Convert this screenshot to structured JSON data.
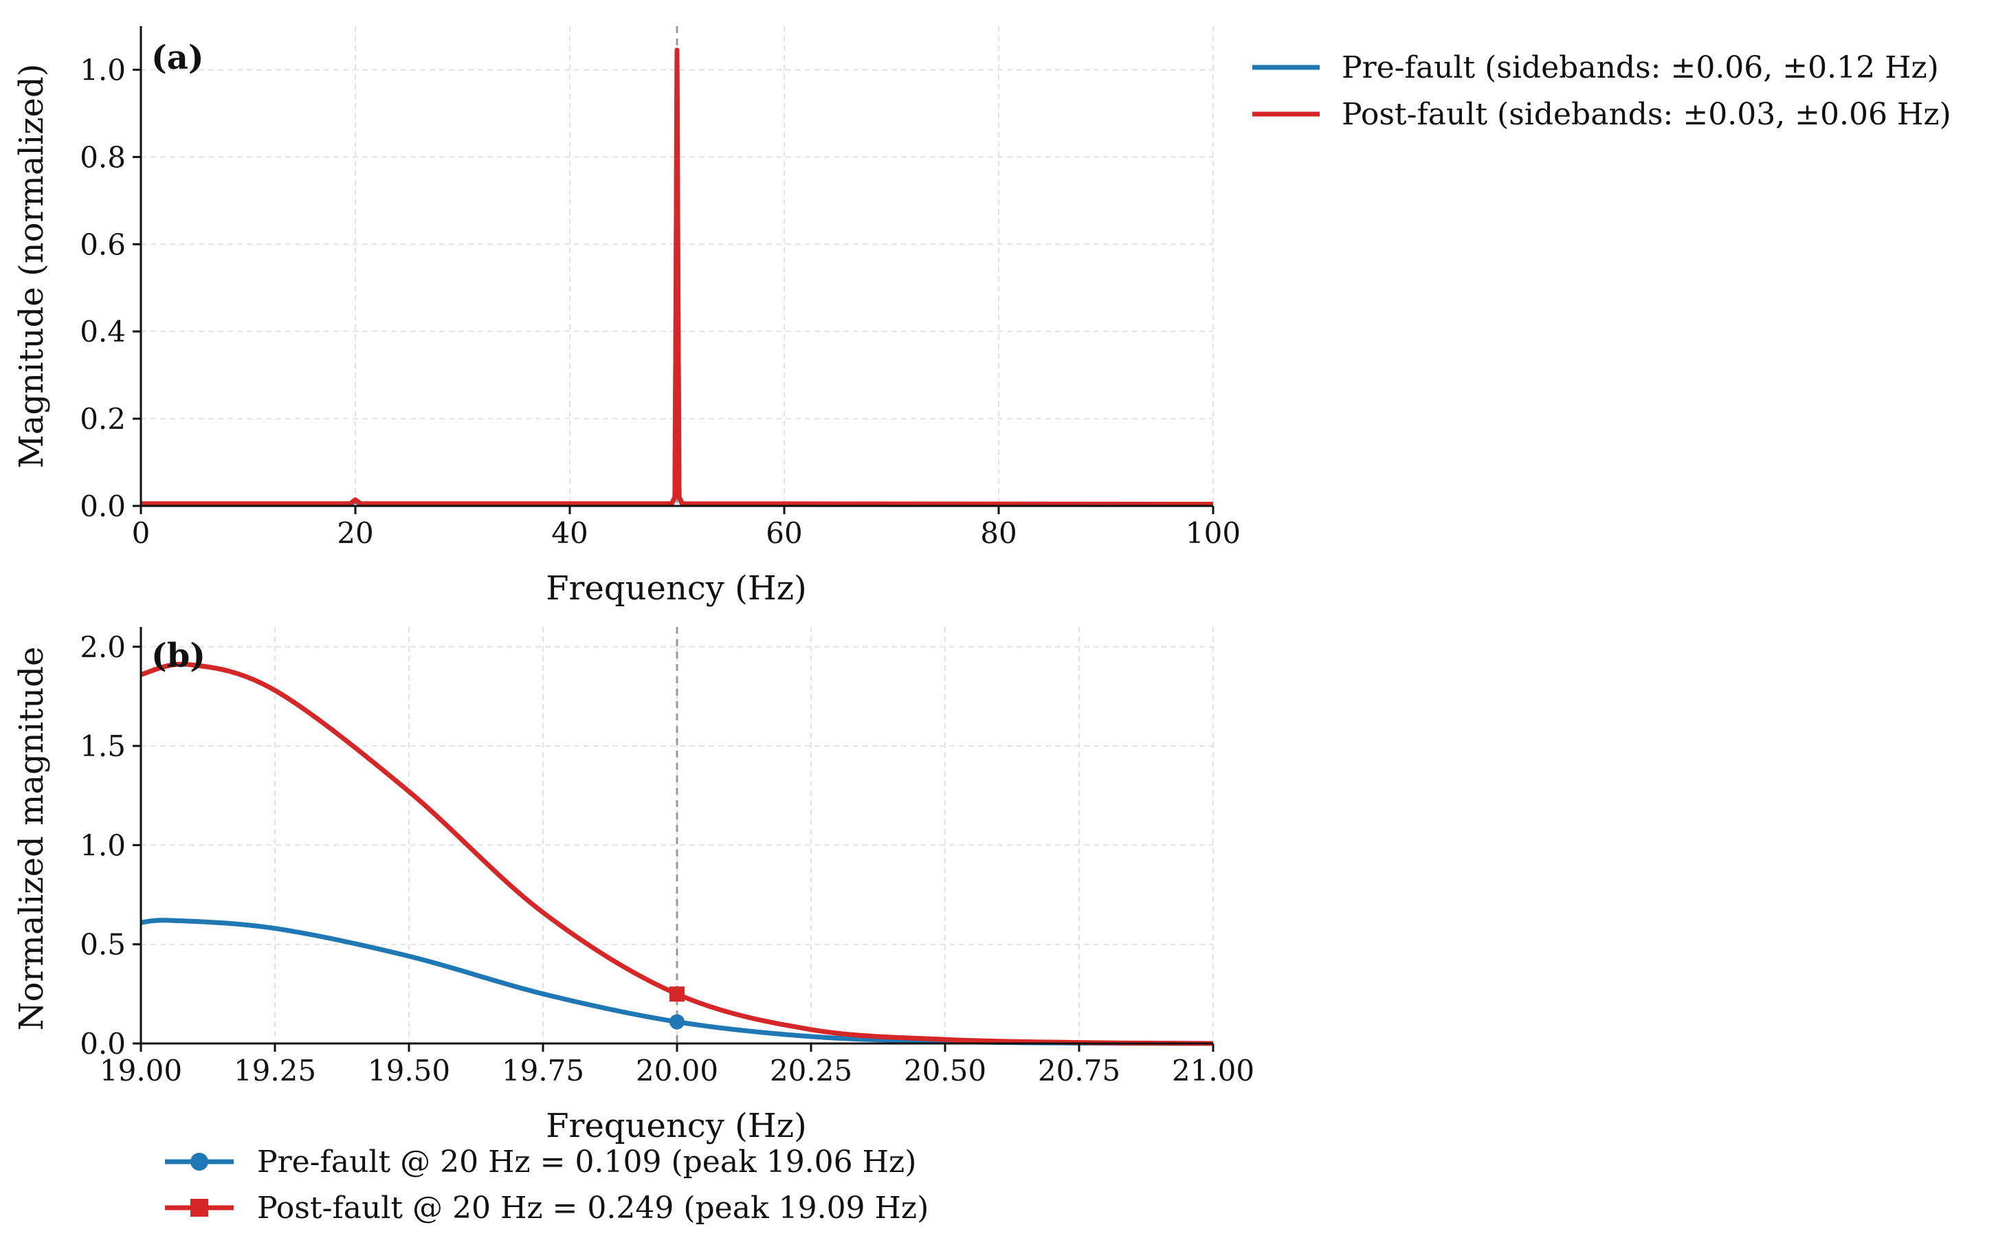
{
  "chart_data": [
    {
      "type": "line",
      "panel": "(a)",
      "xlabel": "Frequency (Hz)",
      "ylabel": "Magnitude (normalized)",
      "xlim": [
        0,
        100
      ],
      "ylim": [
        0,
        1.1
      ],
      "xticks": [
        "0",
        "20",
        "40",
        "60",
        "80",
        "100"
      ],
      "yticks": [
        "0.0",
        "0.2",
        "0.4",
        "0.6",
        "0.8",
        "1.0"
      ],
      "vline": 50,
      "grid": true,
      "legend_position": "outside-top-right",
      "series": [
        {
          "name": "Pre-fault (sidebands: ±0.06, ±0.12 Hz)",
          "color": "#1f77b4",
          "x": [
            0,
            19.5,
            20,
            20.5,
            49.5,
            49.8,
            49.9,
            50,
            50.1,
            50.2,
            50.5,
            100
          ],
          "y": [
            0.004,
            0.004,
            0.012,
            0.004,
            0.004,
            0.02,
            0.45,
            1.04,
            0.45,
            0.02,
            0.004,
            0.004
          ]
        },
        {
          "name": "Post-fault (sidebands: ±0.03, ±0.06 Hz)",
          "color": "#d62728",
          "x": [
            0,
            19.5,
            20,
            20.5,
            49.5,
            49.8,
            49.9,
            50,
            50.1,
            50.2,
            50.5,
            100
          ],
          "y": [
            0.005,
            0.005,
            0.014,
            0.005,
            0.005,
            0.02,
            0.45,
            1.045,
            0.45,
            0.02,
            0.005,
            0.004
          ]
        }
      ]
    },
    {
      "type": "line",
      "panel": "(b)",
      "xlabel": "Frequency (Hz)",
      "ylabel": "Normalized magnitude",
      "xlim": [
        19.0,
        21.0
      ],
      "ylim": [
        0,
        2.1
      ],
      "xticks": [
        "19.00",
        "19.25",
        "19.50",
        "19.75",
        "20.00",
        "20.25",
        "20.50",
        "20.75",
        "21.00"
      ],
      "yticks": [
        "0.0",
        "0.5",
        "1.0",
        "1.5",
        "2.0"
      ],
      "vline": 20,
      "grid": true,
      "legend_position": "bottom-left",
      "series": [
        {
          "name": "Pre-fault @ 20 Hz = 0.109 (peak 19.06 Hz)",
          "color": "#1f77b4",
          "marker": "circle",
          "marker_x": 20,
          "marker_y": 0.109,
          "x": [
            19.0,
            19.06,
            19.25,
            19.5,
            19.75,
            20.0,
            20.25,
            20.5,
            20.75,
            21.0
          ],
          "y": [
            0.61,
            0.62,
            0.58,
            0.44,
            0.25,
            0.109,
            0.035,
            0.01,
            0.002,
            0.0
          ]
        },
        {
          "name": "Post-fault @ 20 Hz = 0.249 (peak 19.09 Hz)",
          "color": "#d62728",
          "marker": "square",
          "marker_x": 20,
          "marker_y": 0.249,
          "x": [
            19.0,
            19.09,
            19.25,
            19.5,
            19.75,
            20.0,
            20.25,
            20.5,
            20.75,
            21.0
          ],
          "y": [
            1.86,
            1.91,
            1.78,
            1.27,
            0.66,
            0.249,
            0.07,
            0.02,
            0.005,
            0.0
          ]
        }
      ]
    }
  ]
}
